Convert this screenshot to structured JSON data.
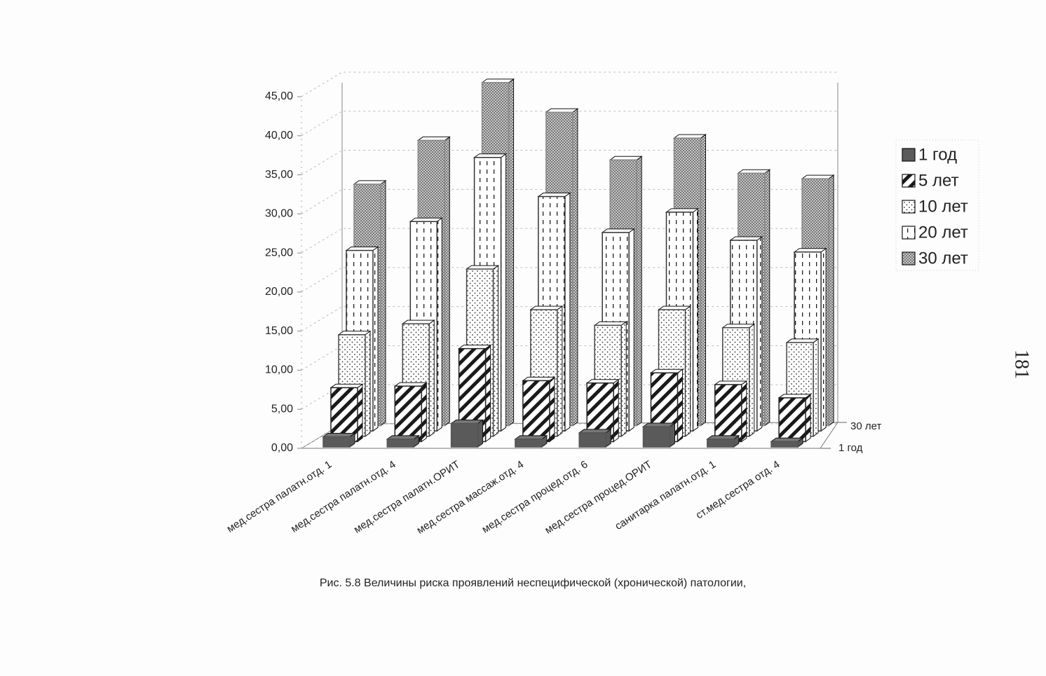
{
  "chart_data": {
    "type": "bar3d",
    "title": "Рис. 5.8 Величины риска проявлений неспецифической (хронической) патологии,",
    "categories": [
      "мед.сестра палатн.отд. 1",
      "мед.сестра палатн.отд. 4",
      "мед.сестра палатн.ОРИТ",
      "мед.сестра массаж.отд. 4",
      "мед.сестра процед.отд. 6",
      "мед.сестра процед.ОРИТ",
      "санитарка палатн.отд. 1",
      "ст.мед.сестра отд. 4"
    ],
    "series": [
      {
        "name": "1 год",
        "color": "#555555",
        "pattern": "solid",
        "values": [
          1.3,
          1.0,
          3.0,
          1.0,
          1.8,
          2.6,
          1.0,
          0.7
        ]
      },
      {
        "name": "5 лет",
        "color": "#222222",
        "pattern": "diagonal",
        "values": [
          6.9,
          7.1,
          11.9,
          7.8,
          7.5,
          8.8,
          7.3,
          5.6
        ]
      },
      {
        "name": "10 лет",
        "color": "#444444",
        "pattern": "dots",
        "values": [
          13.0,
          14.4,
          21.4,
          16.2,
          14.2,
          16.2,
          13.9,
          12.0
        ]
      },
      {
        "name": "20 лет",
        "color": "#333333",
        "pattern": "dashes",
        "values": [
          23.1,
          26.8,
          35.0,
          30.0,
          25.4,
          28.0,
          24.4,
          22.9
        ]
      },
      {
        "name": "30 лет",
        "color": "#888888",
        "pattern": "checker",
        "values": [
          30.9,
          36.5,
          43.9,
          40.1,
          34.0,
          36.8,
          32.3,
          31.6
        ]
      }
    ],
    "ylim": [
      0,
      45
    ],
    "yticks": [
      {
        "value": 0,
        "label": "0,00"
      },
      {
        "value": 5,
        "label": "5,00"
      },
      {
        "value": 10,
        "label": "10,00"
      },
      {
        "value": 15,
        "label": "15,00"
      },
      {
        "value": 20,
        "label": "20,00"
      },
      {
        "value": 25,
        "label": "25,00"
      },
      {
        "value": 30,
        "label": "30,00"
      },
      {
        "value": 35,
        "label": "35,00"
      },
      {
        "value": 40,
        "label": "40,00"
      },
      {
        "value": 45,
        "label": "45,00"
      }
    ],
    "grid": true,
    "legend": "right"
  },
  "page_number": "181"
}
